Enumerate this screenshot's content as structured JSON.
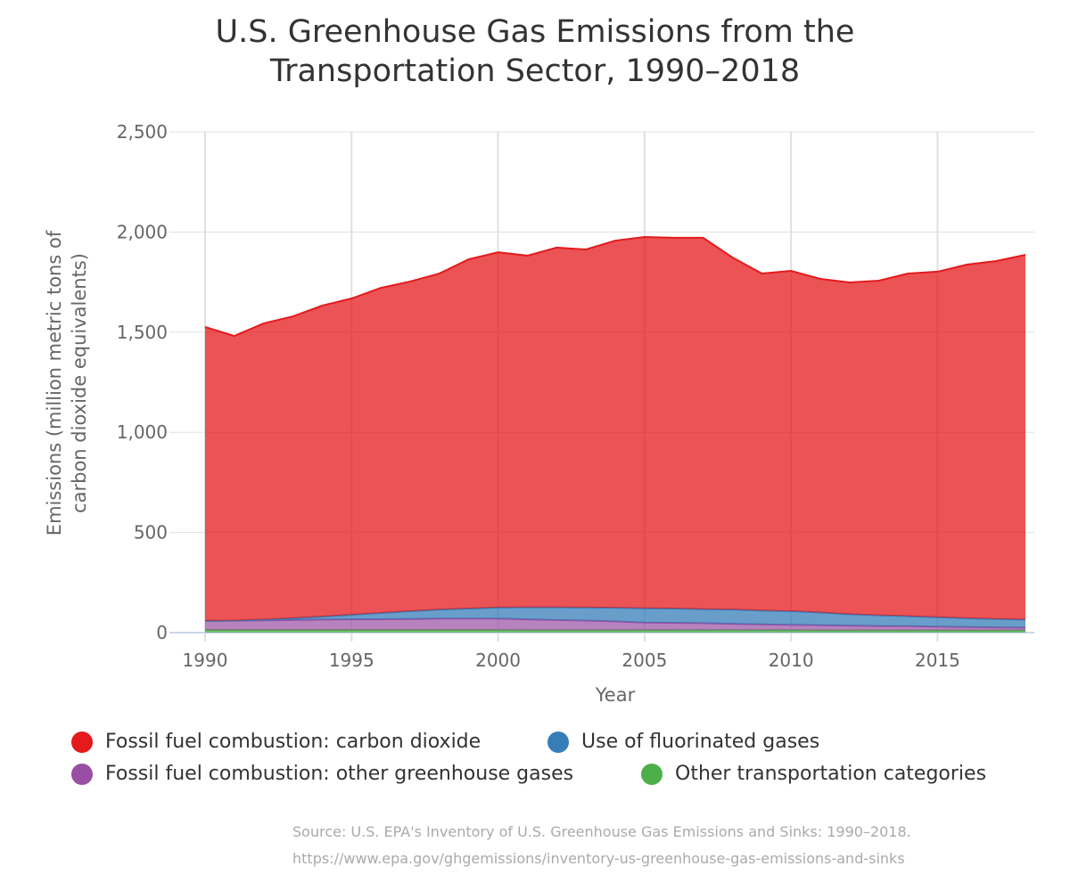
{
  "chart_data": {
    "type": "area",
    "stacked": true,
    "title": "U.S. Greenhouse Gas Emissions from the Transportation Sector, 1990–2018",
    "xlabel": "Year",
    "ylabel": "Emissions (million metric tons of carbon dioxide equivalents)",
    "ylabel_lines": [
      "Emissions (million metric tons of",
      "carbon dioxide equivalents)"
    ],
    "title_lines": [
      "U.S. Greenhouse Gas Emissions from the",
      "Transportation Sector, 1990–2018"
    ],
    "ylim": [
      0,
      2500
    ],
    "xlim": [
      1990,
      2018
    ],
    "yticks": [
      0,
      500,
      1000,
      1500,
      2000,
      2500
    ],
    "ytick_labels": [
      "0",
      "500",
      "1,000",
      "1,500",
      "2,000",
      "2,500"
    ],
    "xticks": [
      1990,
      1995,
      2000,
      2005,
      2010,
      2015
    ],
    "xtick_labels": [
      "1990",
      "1995",
      "2000",
      "2005",
      "2010",
      "2015"
    ],
    "grid": true,
    "legend_position": "bottom",
    "x": [
      1990,
      1991,
      1992,
      1993,
      1994,
      1995,
      1996,
      1997,
      1998,
      1999,
      2000,
      2001,
      2002,
      2003,
      2004,
      2005,
      2006,
      2007,
      2008,
      2009,
      2010,
      2011,
      2012,
      2013,
      2014,
      2015,
      2016,
      2017,
      2018
    ],
    "series": [
      {
        "name": "Other transportation categories",
        "color": "#4daf4a",
        "values": [
          13,
          13,
          13,
          13,
          13,
          13,
          13,
          13,
          13,
          13,
          13,
          12,
          12,
          12,
          12,
          12,
          12,
          12,
          12,
          12,
          12,
          11,
          11,
          11,
          11,
          11,
          11,
          11,
          11
        ]
      },
      {
        "name": "Fossil fuel combustion: other greenhouse gases",
        "color": "#984ea3",
        "values": [
          46,
          46,
          48,
          50,
          52,
          53,
          54,
          55,
          57,
          57,
          57,
          54,
          51,
          48,
          44,
          38,
          37,
          35,
          32,
          29,
          27,
          26,
          24,
          22,
          21,
          19,
          17,
          15,
          14
        ]
      },
      {
        "name": "Use of fluorinated gases",
        "color": "#377eb8",
        "values": [
          0,
          1,
          4,
          9,
          15,
          23,
          31,
          39,
          45,
          50,
          55,
          60,
          63,
          65,
          68,
          71,
          71,
          70,
          71,
          69,
          68,
          63,
          57,
          53,
          50,
          47,
          44,
          42,
          40
        ]
      },
      {
        "name": "Fossil fuel combustion: carbon dioxide",
        "color": "#e41a1c",
        "values": [
          1467,
          1421,
          1479,
          1507,
          1553,
          1579,
          1623,
          1646,
          1678,
          1744,
          1774,
          1756,
          1796,
          1788,
          1833,
          1854,
          1851,
          1854,
          1758,
          1683,
          1699,
          1666,
          1656,
          1671,
          1711,
          1725,
          1765,
          1787,
          1821
        ]
      }
    ]
  },
  "legend": [
    {
      "label": "Fossil fuel combustion: carbon dioxide",
      "color": "#e41a1c"
    },
    {
      "label": "Use of fluorinated gases",
      "color": "#377eb8"
    },
    {
      "label": "Fossil fuel combustion: other greenhouse gases",
      "color": "#984ea3"
    },
    {
      "label": "Other transportation categories",
      "color": "#4daf4a"
    }
  ],
  "source": {
    "line1": "Source: U.S. EPA's Inventory of U.S. Greenhouse Gas Emissions and Sinks: 1990–2018.",
    "line2": "https://www.epa.gov/ghgemissions/inventory-us-greenhouse-gas-emissions-and-sinks"
  }
}
